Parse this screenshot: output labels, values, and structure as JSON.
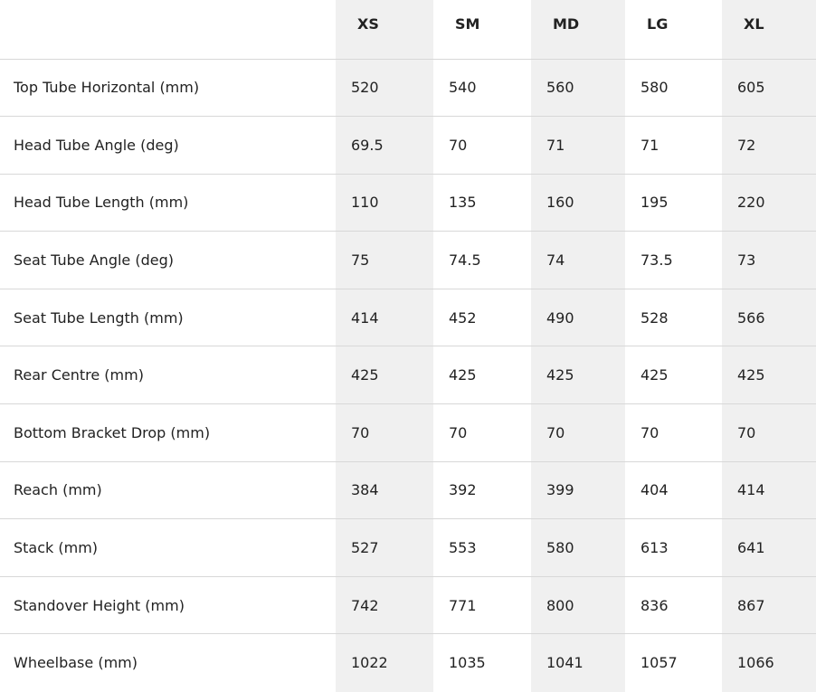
{
  "table": {
    "columns": [
      "XS",
      "SM",
      "MD",
      "LG",
      "XL"
    ],
    "rows": [
      {
        "label": "Top Tube Horizontal (mm)",
        "values": [
          "520",
          "540",
          "560",
          "580",
          "605"
        ]
      },
      {
        "label": "Head Tube Angle (deg)",
        "values": [
          "69.5",
          "70",
          "71",
          "71",
          "72"
        ]
      },
      {
        "label": "Head Tube Length (mm)",
        "values": [
          "110",
          "135",
          "160",
          "195",
          "220"
        ]
      },
      {
        "label": "Seat Tube Angle (deg)",
        "values": [
          "75",
          "74.5",
          "74",
          "73.5",
          "73"
        ]
      },
      {
        "label": "Seat Tube Length (mm)",
        "values": [
          "414",
          "452",
          "490",
          "528",
          "566"
        ]
      },
      {
        "label": "Rear Centre (mm)",
        "values": [
          "425",
          "425",
          "425",
          "425",
          "425"
        ]
      },
      {
        "label": "Bottom Bracket Drop (mm)",
        "values": [
          "70",
          "70",
          "70",
          "70",
          "70"
        ]
      },
      {
        "label": "Reach (mm)",
        "values": [
          "384",
          "392",
          "399",
          "404",
          "414"
        ]
      },
      {
        "label": "Stack (mm)",
        "values": [
          "527",
          "553",
          "580",
          "613",
          "641"
        ]
      },
      {
        "label": "Standover Height (mm)",
        "values": [
          "742",
          "771",
          "800",
          "836",
          "867"
        ]
      },
      {
        "label": "Wheelbase (mm)",
        "values": [
          "1022",
          "1035",
          "1041",
          "1057",
          "1066"
        ]
      }
    ],
    "colors": {
      "shaded_column": "#f0f0f0",
      "border": "#d8d8d8",
      "text": "#222222"
    }
  }
}
